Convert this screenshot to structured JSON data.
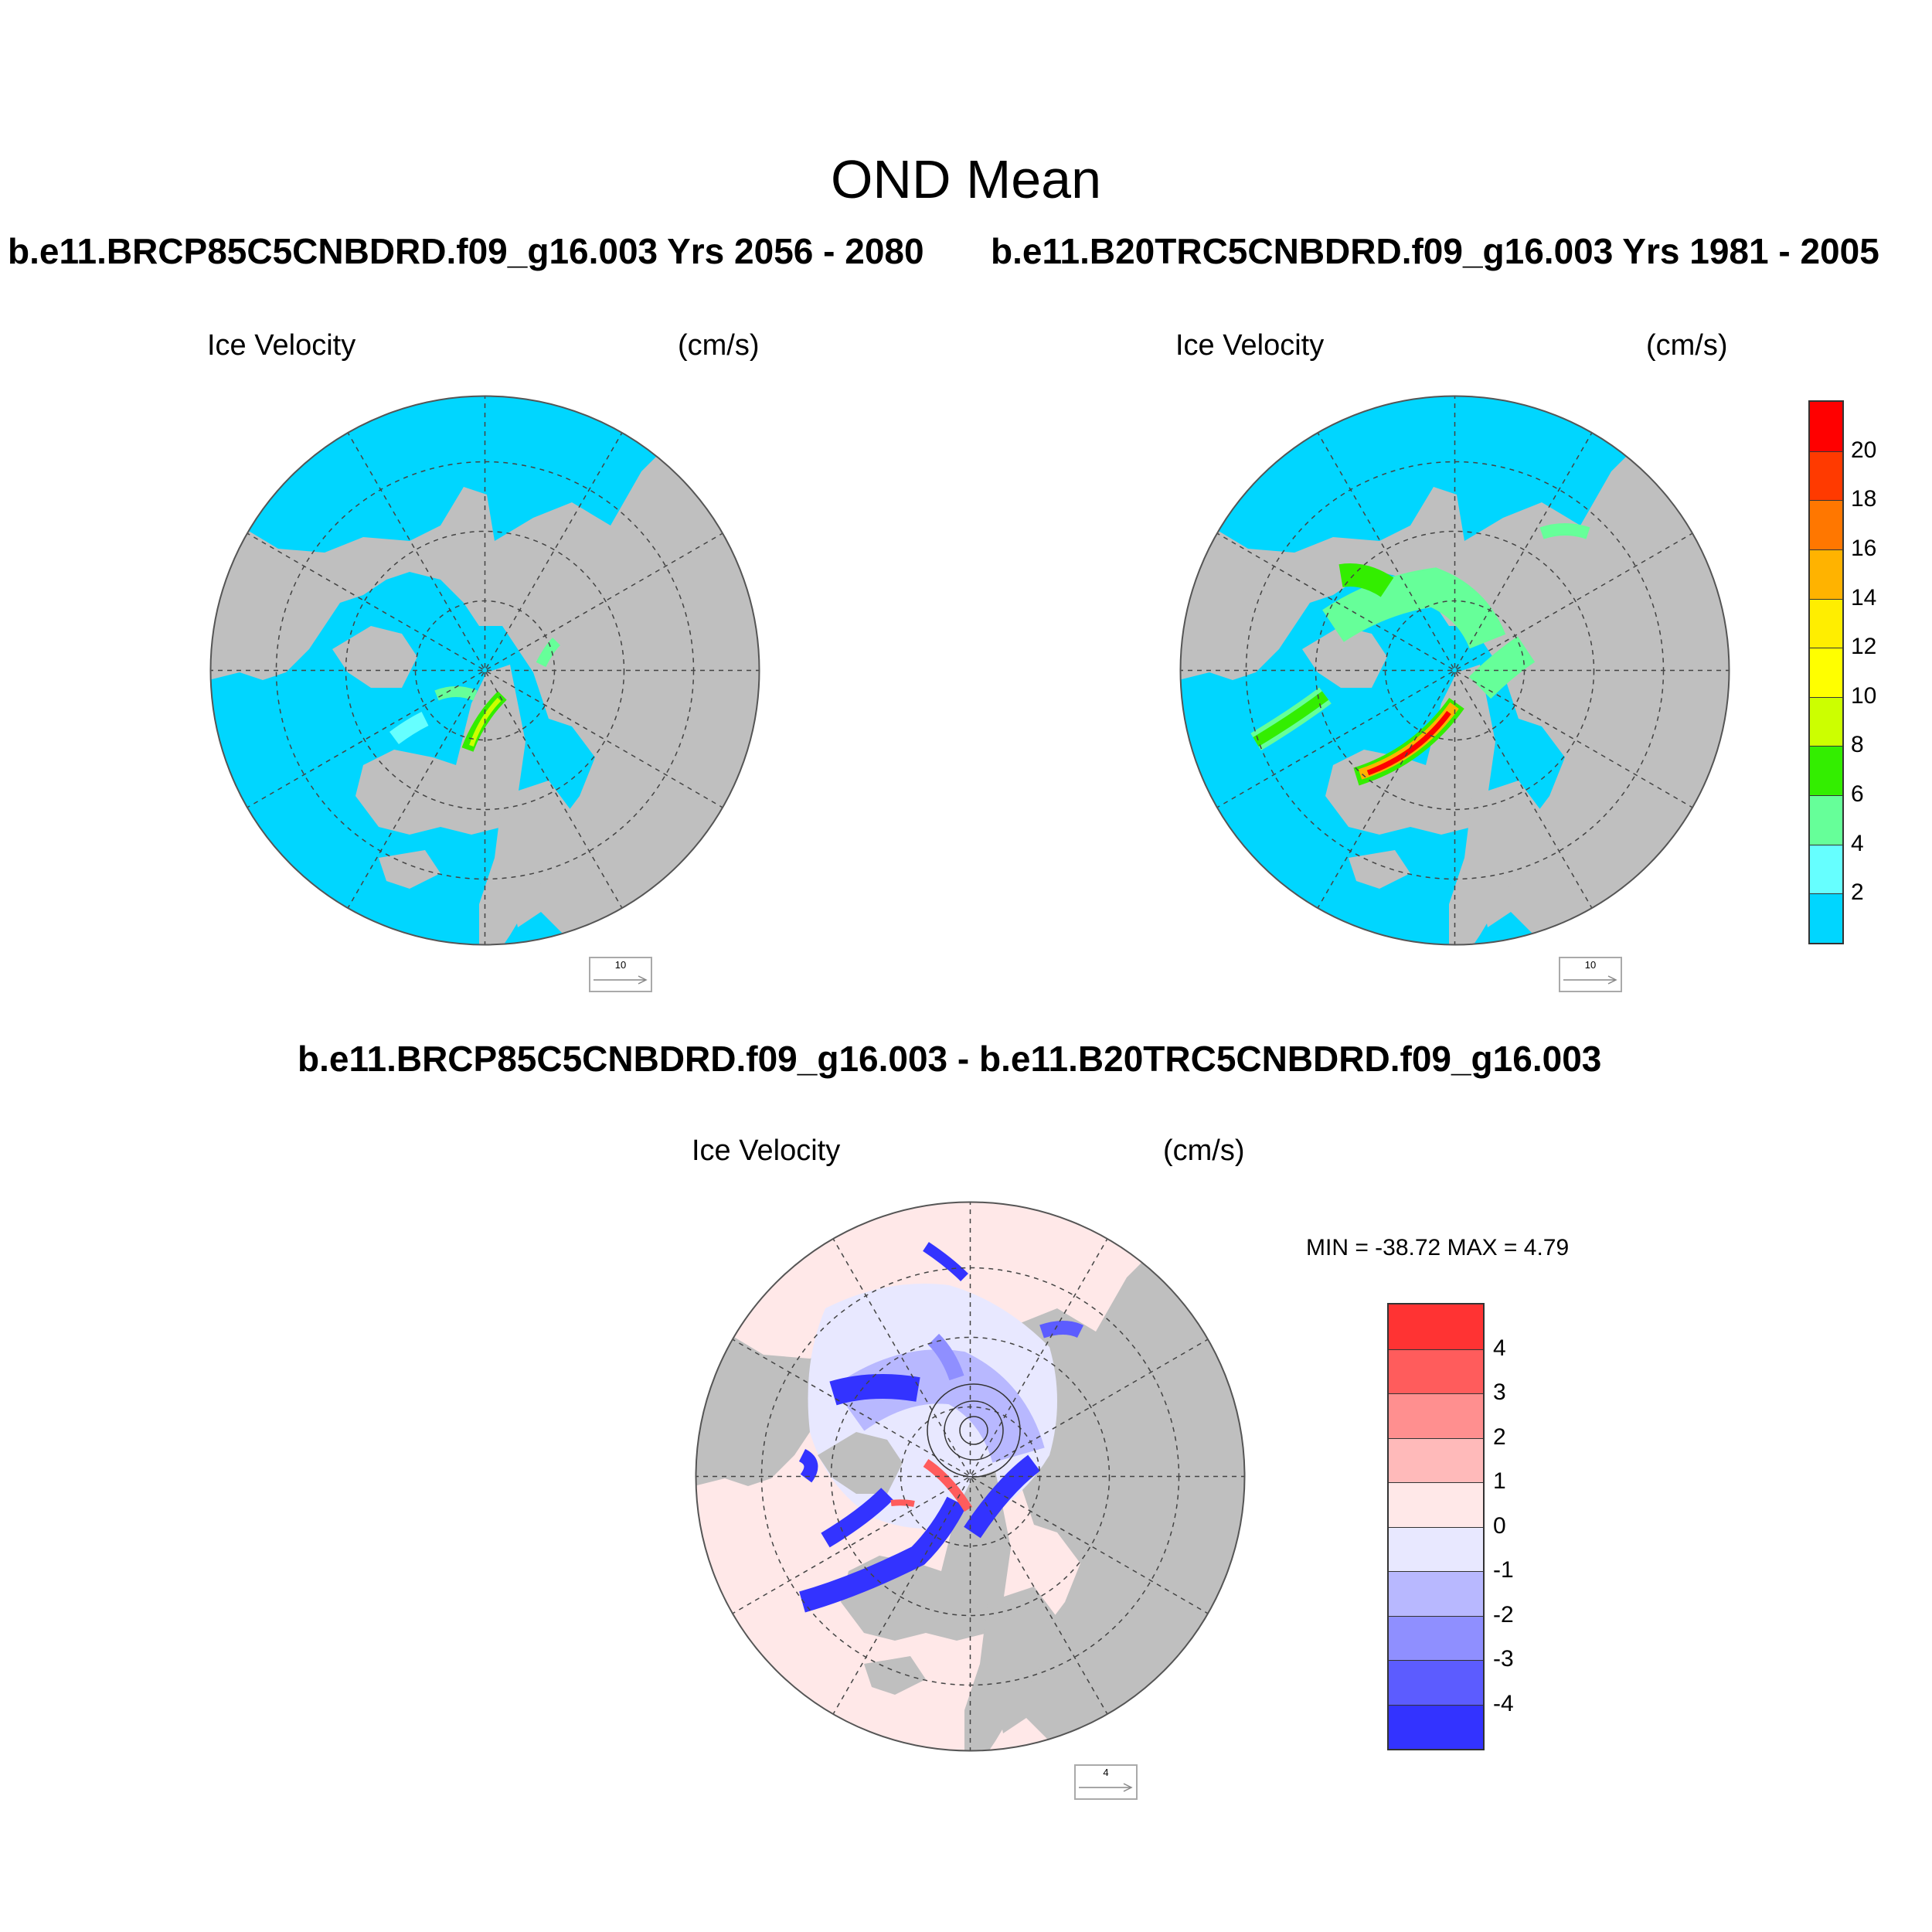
{
  "title": "OND Mean",
  "panels": [
    {
      "case_title": "b.e11.BRCP85C5CNBDRD.f09_g16.003  Yrs 2056 - 2080",
      "variable": "Ice Velocity",
      "units": "(cm/s)",
      "reference_vector": "10"
    },
    {
      "case_title": "b.e11.B20TRC5CNBDRD.f09_g16.003  Yrs 1981 - 2005",
      "variable": "Ice Velocity",
      "units": "(cm/s)",
      "reference_vector": "10"
    }
  ],
  "difference": {
    "title": "b.e11.BRCP85C5CNBDRD.f09_g16.003 - b.e11.B20TRC5CNBDRD.f09_g16.003",
    "variable": "Ice Velocity",
    "units": "(cm/s)",
    "minmax": "MIN = -38.72 MAX =   4.79",
    "reference_vector": "4"
  },
  "colorbar_top": {
    "labels": [
      "20",
      "18",
      "16",
      "14",
      "12",
      "10",
      "8",
      "6",
      "4",
      "2"
    ],
    "colors": [
      "#ff0000",
      "#ff3a00",
      "#ff7700",
      "#ffb300",
      "#ffee00",
      "#ffff00",
      "#ccff00",
      "#33ee00",
      "#66ff99",
      "#66ffff",
      "#00d6ff"
    ]
  },
  "colorbar_diff": {
    "labels": [
      "4",
      "3",
      "2",
      "1",
      "0",
      "-1",
      "-2",
      "-3",
      "-4"
    ],
    "colors": [
      "#ff3333",
      "#ff5c5c",
      "#ff8f8f",
      "#ffbaba",
      "#ffe8e8",
      "#e8e8ff",
      "#b8b8ff",
      "#8f8fff",
      "#5c5cff",
      "#3333ff"
    ]
  },
  "colors": {
    "ocean_ice_free": "#00d6ff",
    "land": "#bfbfbf",
    "diff_background": "#ffe8e8"
  }
}
